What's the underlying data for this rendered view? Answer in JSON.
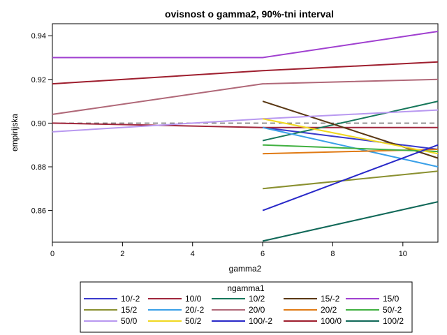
{
  "chart_data": {
    "type": "line",
    "title": "ovisnost o gamma2, 90%-tni interval",
    "xlabel": "gamma2",
    "ylabel": "empirijska",
    "xlim": [
      0,
      11
    ],
    "ylim": [
      0.8455,
      0.9455
    ],
    "xticks": [
      0,
      2,
      4,
      6,
      8,
      10
    ],
    "yticks": [
      0.86,
      0.88,
      0.9,
      0.92,
      0.94
    ],
    "ytick_labels": [
      "0.86",
      "0.88",
      "0.90",
      "0.92",
      "0.94"
    ],
    "grid": false,
    "reference_line": {
      "y": 0.9,
      "style": "dashed",
      "color": "#777777"
    },
    "legend": {
      "title": "ngamma1",
      "placement": "bottom"
    },
    "series": [
      {
        "name": "10/-2",
        "color": "#3a3acc",
        "x": [
          6,
          11
        ],
        "y": [
          0.898,
          0.888
        ]
      },
      {
        "name": "10/0",
        "color": "#a0263c",
        "x": [
          0,
          6,
          11
        ],
        "y": [
          0.9,
          0.898,
          0.898
        ]
      },
      {
        "name": "10/2",
        "color": "#16775a",
        "x": [
          6,
          11
        ],
        "y": [
          0.892,
          0.91
        ]
      },
      {
        "name": "15/-2",
        "color": "#5a3814",
        "x": [
          6,
          11
        ],
        "y": [
          0.91,
          0.884
        ]
      },
      {
        "name": "15/0",
        "color": "#a040d0",
        "x": [
          0,
          6,
          11
        ],
        "y": [
          0.93,
          0.93,
          0.942
        ]
      },
      {
        "name": "15/2",
        "color": "#8a9030",
        "x": [
          6,
          11
        ],
        "y": [
          0.87,
          0.878
        ]
      },
      {
        "name": "20/-2",
        "color": "#3aa0e8",
        "x": [
          6,
          11
        ],
        "y": [
          0.898,
          0.88
        ]
      },
      {
        "name": "20/0",
        "color": "#b06878",
        "x": [
          0,
          6,
          11
        ],
        "y": [
          0.904,
          0.918,
          0.92
        ]
      },
      {
        "name": "20/2",
        "color": "#e07a14",
        "x": [
          6,
          11
        ],
        "y": [
          0.886,
          0.888
        ]
      },
      {
        "name": "50/-2",
        "color": "#40b040",
        "x": [
          6,
          11
        ],
        "y": [
          0.89,
          0.887
        ]
      },
      {
        "name": "50/0",
        "color": "#b898f0",
        "x": [
          0,
          6,
          11
        ],
        "y": [
          0.896,
          0.902,
          0.906
        ]
      },
      {
        "name": "50/2",
        "color": "#f0d820",
        "x": [
          6,
          11
        ],
        "y": [
          0.902,
          0.886
        ]
      },
      {
        "name": "100/-2",
        "color": "#2828c8",
        "x": [
          6,
          11
        ],
        "y": [
          0.86,
          0.89
        ]
      },
      {
        "name": "100/0",
        "color": "#9e1e2e",
        "x": [
          0,
          6,
          11
        ],
        "y": [
          0.918,
          0.924,
          0.928
        ]
      },
      {
        "name": "100/2",
        "color": "#106858",
        "x": [
          6,
          11
        ],
        "y": [
          0.846,
          0.864
        ]
      }
    ]
  }
}
